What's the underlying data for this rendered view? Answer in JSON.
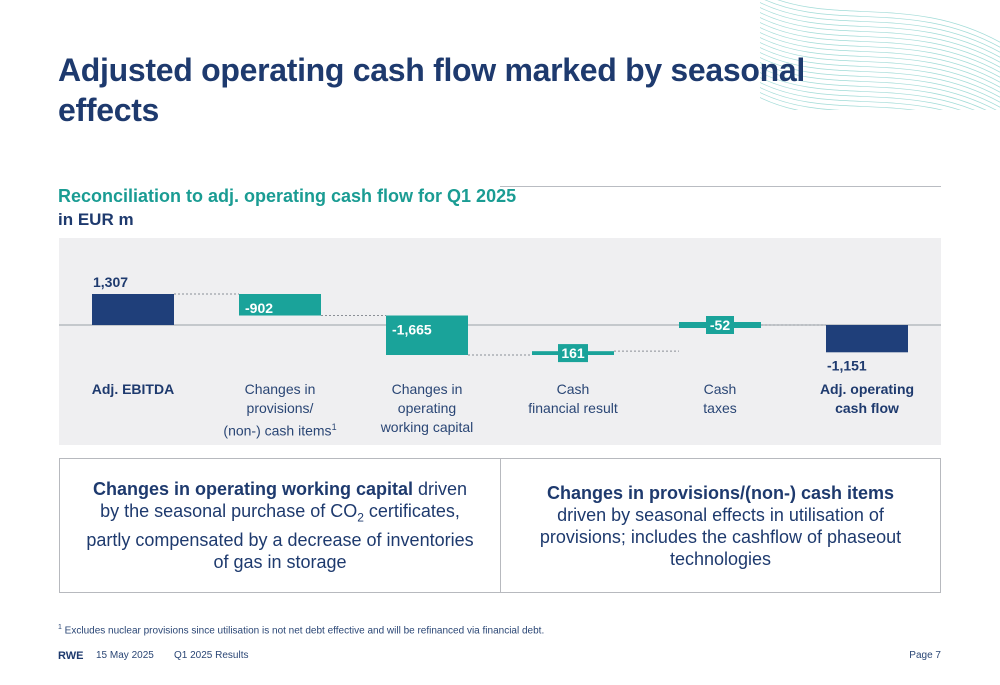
{
  "title": "Adjusted operating cash flow marked by seasonal effects",
  "subtitle": "Reconciliation to adj. operating cash flow for Q1 2025",
  "unit_label": "in EUR m",
  "chart_data": {
    "type": "bar",
    "categories": [
      "Adj. EBITDA",
      "Changes in provisions/ (non-) cash items",
      "Changes in operating working capital",
      "Cash financial result",
      "Cash taxes",
      "Adj. operating cash flow"
    ],
    "values": [
      1307,
      -902,
      -1665,
      161,
      -52,
      -1151
    ],
    "data_labels": [
      "1,307",
      "-902",
      "-1,665",
      "161",
      "-52",
      "-1,151"
    ],
    "title": "Reconciliation to adj. operating cash flow for Q1 2025",
    "ylabel": "in EUR m",
    "ylim": [
      -1300,
      1450
    ],
    "colors": {
      "total": "#1f3f7a",
      "step": "#1aa39a"
    }
  },
  "categories_text": [
    {
      "lines": [
        "Adj. EBITDA"
      ],
      "bold": true
    },
    {
      "lines": [
        "Changes in",
        "provisions/",
        "(non-) cash items"
      ],
      "sup": "1",
      "bold": false
    },
    {
      "lines": [
        "Changes in",
        "operating",
        "working capital"
      ],
      "bold": false
    },
    {
      "lines": [
        "Cash",
        "financial result"
      ],
      "bold": false
    },
    {
      "lines": [
        "Cash",
        "taxes"
      ],
      "bold": false
    },
    {
      "lines": [
        "Adj. operating",
        "cash flow"
      ],
      "bold": true
    }
  ],
  "box_left": {
    "bold": "Changes in operating working capital",
    "text1": " driven by the seasonal purchase of CO",
    "sub": "2",
    "text2": " certificates, partly compensated by a decrease of inventories of gas in storage"
  },
  "box_right": {
    "bold": "Changes in provisions/(non-) cash items",
    "text": " driven by seasonal effects in utilisation of provisions; includes the cashflow of phaseout technologies"
  },
  "footnote_mark": "1",
  "footnote": " Excludes nuclear provisions since utilisation is not net debt effective and will be refinanced via financial debt.",
  "footer": {
    "logo": "RWE",
    "date": "15 May 2025",
    "doc": "Q1 2025 Results",
    "page": "Page 7"
  }
}
